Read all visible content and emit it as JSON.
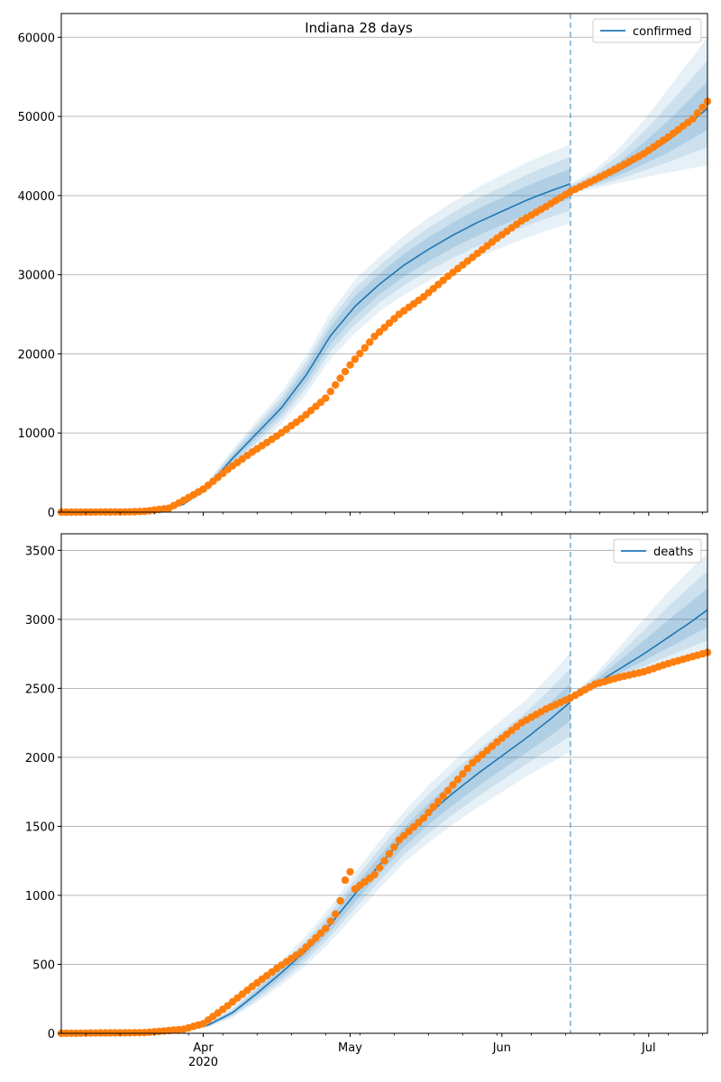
{
  "figure": {
    "title": "Indiana 28 days"
  },
  "chart_data": [
    {
      "type": "line",
      "title": "Indiana 28 days",
      "legend": {
        "label": "confirmed",
        "placement": "top-right"
      },
      "x_ticks": [
        {
          "date": "2020-04-01",
          "label": "Apr",
          "sublabel": "2020"
        },
        {
          "date": "2020-05-01",
          "label": "May",
          "sublabel": ""
        },
        {
          "date": "2020-06-01",
          "label": "Jun",
          "sublabel": ""
        },
        {
          "date": "2020-07-01",
          "label": "Jul",
          "sublabel": ""
        }
      ],
      "xlim": [
        "2020-03-03",
        "2020-07-13"
      ],
      "ylim": [
        0,
        63000
      ],
      "y_ticks": [
        0,
        10000,
        20000,
        30000,
        40000,
        50000,
        60000
      ],
      "grid": "horizontal",
      "vline_date": "2020-06-15",
      "colors": {
        "model": "#1f77b4",
        "observed": "#ff7f0e",
        "band": "#1f77b4"
      },
      "model": {
        "dates": [
          "2020-03-13",
          "2020-03-18",
          "2020-03-23",
          "2020-03-28",
          "2020-04-02",
          "2020-04-07",
          "2020-04-12",
          "2020-04-17",
          "2020-04-22",
          "2020-04-27",
          "2020-05-02",
          "2020-05-07",
          "2020-05-12",
          "2020-05-17",
          "2020-05-22",
          "2020-05-27",
          "2020-06-01",
          "2020-06-06",
          "2020-06-11",
          "2020-06-15"
        ],
        "values": [
          0,
          30,
          200,
          1000,
          3300,
          6800,
          10000,
          13200,
          17300,
          22300,
          26000,
          28800,
          31200,
          33200,
          35000,
          36600,
          38000,
          39400,
          40600,
          41500
        ],
        "band_outer": [
          0.22,
          0.21,
          0.2,
          0.19,
          0.18,
          0.17,
          0.16,
          0.15,
          0.14,
          0.13,
          0.13,
          0.12,
          0.12,
          0.12,
          0.12,
          0.12,
          0.12,
          0.12,
          0.12,
          0.12
        ]
      },
      "forecast": {
        "dates": [
          "2020-06-15",
          "2020-06-20",
          "2020-06-25",
          "2020-06-30",
          "2020-07-05",
          "2020-07-10",
          "2020-07-13"
        ],
        "values": [
          40800,
          41800,
          43200,
          45000,
          47000,
          49500,
          51000
        ],
        "lower_outer": [
          40300,
          40900,
          41600,
          42300,
          42900,
          43500,
          43800
        ],
        "upper_outer": [
          41500,
          43200,
          46000,
          49500,
          53500,
          57500,
          60000
        ]
      },
      "observed": {
        "start": "2020-03-03",
        "end": "2020-07-13",
        "anchor_dates": [
          "2020-03-03",
          "2020-03-17",
          "2020-03-20",
          "2020-03-25",
          "2020-03-28",
          "2020-04-01",
          "2020-04-06",
          "2020-04-11",
          "2020-04-16",
          "2020-04-21",
          "2020-04-26",
          "2020-05-01",
          "2020-05-06",
          "2020-05-11",
          "2020-05-16",
          "2020-05-21",
          "2020-05-26",
          "2020-05-31",
          "2020-06-05",
          "2020-06-10",
          "2020-06-15",
          "2020-06-20",
          "2020-06-25",
          "2020-06-30",
          "2020-07-05",
          "2020-07-10",
          "2020-07-13"
        ],
        "anchor_values": [
          0,
          30,
          100,
          500,
          1500,
          2900,
          5400,
          7600,
          9600,
          11800,
          14400,
          18600,
          22200,
          25000,
          27200,
          29800,
          32200,
          34600,
          36800,
          38600,
          40500,
          42000,
          43600,
          45300,
          47400,
          49700,
          51900
        ]
      }
    },
    {
      "type": "line",
      "title": "",
      "legend": {
        "label": "deaths",
        "placement": "top-right"
      },
      "x_ticks": [
        {
          "date": "2020-04-01",
          "label": "Apr",
          "sublabel": "2020"
        },
        {
          "date": "2020-05-01",
          "label": "May",
          "sublabel": ""
        },
        {
          "date": "2020-06-01",
          "label": "Jun",
          "sublabel": ""
        },
        {
          "date": "2020-07-01",
          "label": "Jul",
          "sublabel": ""
        }
      ],
      "xlim": [
        "2020-03-03",
        "2020-07-13"
      ],
      "ylim": [
        0,
        3620
      ],
      "y_ticks": [
        0,
        500,
        1000,
        1500,
        2000,
        2500,
        3000,
        3500
      ],
      "grid": "horizontal",
      "vline_date": "2020-06-15",
      "colors": {
        "model": "#1f77b4",
        "observed": "#ff7f0e",
        "band": "#1f77b4"
      },
      "model": {
        "dates": [
          "2020-03-18",
          "2020-03-23",
          "2020-03-28",
          "2020-04-02",
          "2020-04-07",
          "2020-04-12",
          "2020-04-17",
          "2020-04-22",
          "2020-04-27",
          "2020-05-02",
          "2020-05-07",
          "2020-05-12",
          "2020-05-17",
          "2020-05-22",
          "2020-05-27",
          "2020-06-01",
          "2020-06-06",
          "2020-06-11",
          "2020-06-15"
        ],
        "values": [
          0,
          5,
          20,
          60,
          150,
          290,
          440,
          600,
          790,
          1010,
          1220,
          1420,
          1590,
          1740,
          1880,
          2010,
          2140,
          2280,
          2400
        ],
        "band_outer": [
          0.3,
          0.3,
          0.28,
          0.26,
          0.24,
          0.22,
          0.2,
          0.18,
          0.16,
          0.15,
          0.14,
          0.13,
          0.13,
          0.13,
          0.13,
          0.13,
          0.13,
          0.14,
          0.15
        ]
      },
      "forecast": {
        "dates": [
          "2020-06-15",
          "2020-06-20",
          "2020-06-25",
          "2020-06-30",
          "2020-07-05",
          "2020-07-10",
          "2020-07-13"
        ],
        "values": [
          2430,
          2530,
          2640,
          2750,
          2870,
          2990,
          3070
        ],
        "lower_outer": [
          2410,
          2490,
          2560,
          2620,
          2670,
          2720,
          2740
        ],
        "upper_outer": [
          2450,
          2600,
          2800,
          3000,
          3200,
          3380,
          3480
        ]
      },
      "observed": {
        "start": "2020-03-03",
        "end": "2020-07-13",
        "anchor_dates": [
          "2020-03-03",
          "2020-03-20",
          "2020-03-25",
          "2020-03-28",
          "2020-04-01",
          "2020-04-06",
          "2020-04-11",
          "2020-04-16",
          "2020-04-21",
          "2020-04-26",
          "2020-05-01",
          "2020-05-06",
          "2020-05-11",
          "2020-05-16",
          "2020-05-21",
          "2020-05-26",
          "2020-05-31",
          "2020-06-05",
          "2020-06-10",
          "2020-06-15",
          "2020-06-20",
          "2020-06-25",
          "2020-06-30",
          "2020-07-05",
          "2020-07-10",
          "2020-07-13"
        ],
        "anchor_values": [
          0,
          5,
          20,
          30,
          70,
          200,
          340,
          470,
          590,
          760,
          1020,
          1150,
          1400,
          1560,
          1760,
          1960,
          2110,
          2250,
          2350,
          2430,
          2530,
          2580,
          2620,
          2680,
          2730,
          2760
        ],
        "outliers": [
          {
            "date": "2020-04-29",
            "value": 960
          },
          {
            "date": "2020-04-30",
            "value": 1110
          },
          {
            "date": "2020-05-01",
            "value": 1170
          }
        ]
      }
    }
  ]
}
